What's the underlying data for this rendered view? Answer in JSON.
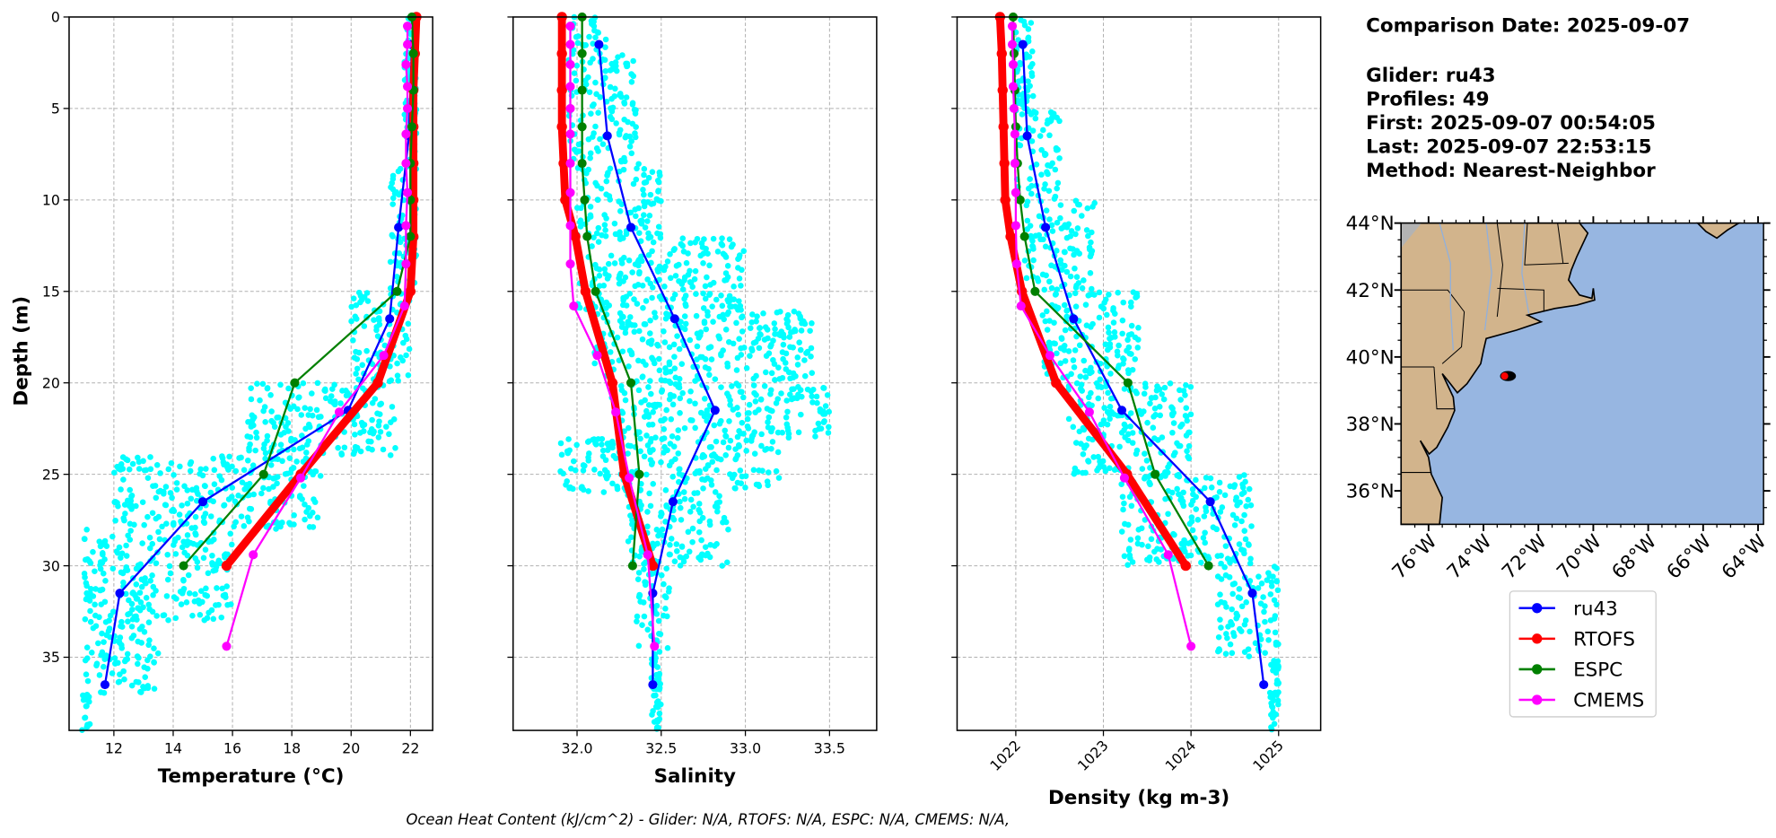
{
  "info": {
    "lines": [
      "Comparison Date: 2025-09-07",
      "",
      "Glider: ru43",
      "Profiles: 49",
      "First: 2025-09-07 00:54:05",
      "Last: 2025-09-07 22:53:15",
      "Method: Nearest-Neighbor"
    ]
  },
  "footer": "Ocean Heat Content (kJ/cm^2) - Glider: N/A,  RTOFS: N/A,  ESPC: N/A,  CMEMS: N/A,",
  "legend": [
    {
      "name": "ru43",
      "color": "#0000ff"
    },
    {
      "name": "RTOFS",
      "color": "#ff0000"
    },
    {
      "name": "ESPC",
      "color": "#008000"
    },
    {
      "name": "CMEMS",
      "color": "#ff00ff"
    }
  ],
  "scatter_color": "#00ffff",
  "chart_data": [
    {
      "type": "line",
      "xlabel": "Temperature (°C)",
      "ylabel": "Depth (m)",
      "xlim": [
        10.49,
        22.75
      ],
      "ylim": [
        39,
        0
      ],
      "xticks": [
        "12",
        "14",
        "16",
        "18",
        "20",
        "22"
      ],
      "yticks": [
        "0",
        "5",
        "10",
        "15",
        "20",
        "25",
        "30",
        "35"
      ],
      "grid": true,
      "glider_scatter_envelope": [
        [
          0,
          8,
          21.8,
          22.2
        ],
        [
          8,
          15,
          21.3,
          22.2
        ],
        [
          15,
          20,
          20.0,
          22.0
        ],
        [
          20,
          24,
          16.5,
          21.5
        ],
        [
          24,
          28,
          12.0,
          19.0
        ],
        [
          28,
          33,
          11.0,
          16.0
        ],
        [
          33,
          37,
          11.0,
          13.5
        ],
        [
          37,
          39,
          10.9,
          11.2
        ]
      ],
      "series": [
        {
          "name": "ru43",
          "depth": [
            1.5,
            6.5,
            11.5,
            16.5,
            21.5,
            26.5,
            31.5,
            36.5
          ],
          "values": [
            22.05,
            21.95,
            21.6,
            21.3,
            19.9,
            15.0,
            12.2,
            11.7
          ]
        },
        {
          "name": "RTOFS",
          "depth": [
            0,
            2,
            4,
            6,
            8,
            10,
            12,
            15,
            20,
            25,
            30
          ],
          "values": [
            22.2,
            22.15,
            22.1,
            22.1,
            22.1,
            22.1,
            22.1,
            22.0,
            20.9,
            18.3,
            15.8
          ]
        },
        {
          "name": "ESPC",
          "depth": [
            0,
            2,
            4,
            6,
            8,
            10,
            12,
            15,
            20,
            25,
            30
          ],
          "values": [
            22.05,
            22.1,
            22.1,
            22.05,
            22.0,
            22.0,
            22.0,
            21.55,
            18.1,
            17.05,
            14.35
          ]
        },
        {
          "name": "CMEMS",
          "depth": [
            0.5,
            1.5,
            2.6,
            3.8,
            5.0,
            6.4,
            8.0,
            9.6,
            11.4,
            13.5,
            15.8,
            18.5,
            21.6,
            25.2,
            29.4,
            34.4
          ],
          "values": [
            21.9,
            21.9,
            21.85,
            21.9,
            21.9,
            21.85,
            21.85,
            21.9,
            21.85,
            21.85,
            21.8,
            21.1,
            19.6,
            18.3,
            16.7,
            15.8
          ]
        }
      ]
    },
    {
      "type": "line",
      "xlabel": "Salinity",
      "ylabel": "",
      "xlim": [
        31.62,
        33.78
      ],
      "ylim": [
        39,
        0
      ],
      "xticks": [
        "32.0",
        "32.5",
        "33.0",
        "33.5"
      ],
      "yticks": [],
      "grid": true,
      "glider_scatter_envelope": [
        [
          0,
          2,
          31.95,
          32.2
        ],
        [
          2,
          8,
          31.95,
          32.35
        ],
        [
          8,
          12,
          32.0,
          32.5
        ],
        [
          12,
          16,
          32.0,
          33.0
        ],
        [
          16,
          20,
          32.1,
          33.4
        ],
        [
          20,
          23,
          32.2,
          33.5
        ],
        [
          23,
          26,
          31.9,
          33.2
        ],
        [
          26,
          30,
          32.3,
          32.9
        ],
        [
          30,
          35,
          32.35,
          32.55
        ],
        [
          35,
          39,
          32.44,
          32.5
        ]
      ],
      "series": [
        {
          "name": "ru43",
          "depth": [
            1.5,
            6.5,
            11.5,
            16.5,
            21.5,
            26.5,
            31.5,
            36.5
          ],
          "values": [
            32.13,
            32.18,
            32.32,
            32.58,
            32.82,
            32.57,
            32.45,
            32.45
          ]
        },
        {
          "name": "RTOFS",
          "depth": [
            0,
            2,
            4,
            6,
            8,
            10,
            12,
            15,
            20,
            25,
            30
          ],
          "values": [
            31.91,
            31.91,
            31.91,
            31.91,
            31.92,
            31.93,
            31.99,
            32.05,
            32.21,
            32.28,
            32.45
          ]
        },
        {
          "name": "ESPC",
          "depth": [
            0,
            2,
            4,
            6,
            8,
            10,
            12,
            15,
            20,
            25,
            30
          ],
          "values": [
            32.03,
            32.03,
            32.03,
            32.03,
            32.03,
            32.045,
            32.06,
            32.11,
            32.32,
            32.37,
            32.33
          ]
        },
        {
          "name": "CMEMS",
          "depth": [
            0.5,
            1.5,
            2.6,
            3.8,
            5.0,
            6.4,
            8.0,
            9.6,
            11.4,
            13.5,
            15.8,
            18.5,
            21.6,
            25.2,
            29.4,
            34.4
          ],
          "values": [
            31.96,
            31.96,
            31.96,
            31.96,
            31.96,
            31.96,
            31.96,
            31.96,
            31.96,
            31.96,
            31.98,
            32.12,
            32.23,
            32.31,
            32.42,
            32.46
          ]
        }
      ]
    },
    {
      "type": "line",
      "xlabel": "Density (kg m-3)",
      "ylabel": "",
      "xlim": [
        1021.33,
        1025.48
      ],
      "ylim": [
        39,
        0
      ],
      "xticks": [
        "1022",
        "1023",
        "1024",
        "1025"
      ],
      "yticks": [],
      "grid": true,
      "glider_scatter_envelope": [
        [
          0,
          5,
          1022.0,
          1022.2
        ],
        [
          5,
          10,
          1022.0,
          1022.5
        ],
        [
          10,
          15,
          1022.1,
          1022.9
        ],
        [
          15,
          20,
          1022.3,
          1023.4
        ],
        [
          20,
          25,
          1022.6,
          1024.0
        ],
        [
          25,
          30,
          1023.2,
          1024.7
        ],
        [
          30,
          35,
          1024.3,
          1025.0
        ],
        [
          35,
          39,
          1024.9,
          1025.0
        ]
      ],
      "series": [
        {
          "name": "ru43",
          "depth": [
            1.5,
            6.5,
            11.5,
            16.5,
            21.5,
            26.5,
            31.5,
            36.5
          ],
          "values": [
            1022.08,
            1022.13,
            1022.34,
            1022.66,
            1023.21,
            1024.22,
            1024.7,
            1024.83
          ]
        },
        {
          "name": "RTOFS",
          "depth": [
            0,
            2,
            4,
            6,
            8,
            10,
            12,
            15,
            20,
            25,
            30
          ],
          "values": [
            1021.82,
            1021.84,
            1021.85,
            1021.86,
            1021.87,
            1021.88,
            1021.94,
            1022.07,
            1022.46,
            1023.27,
            1023.94
          ]
        },
        {
          "name": "ESPC",
          "depth": [
            0,
            2,
            4,
            6,
            8,
            10,
            12,
            15,
            20,
            25,
            30
          ],
          "values": [
            1021.97,
            1021.98,
            1021.99,
            1022.0,
            1022.02,
            1022.05,
            1022.1,
            1022.22,
            1023.28,
            1023.59,
            1024.2
          ]
        },
        {
          "name": "CMEMS",
          "depth": [
            0.5,
            1.5,
            2.6,
            3.8,
            5.0,
            6.4,
            8.0,
            9.6,
            11.4,
            13.5,
            15.8,
            18.5,
            21.6,
            25.2,
            29.4,
            34.4
          ],
          "values": [
            1021.96,
            1021.96,
            1021.97,
            1021.97,
            1021.98,
            1021.99,
            1021.99,
            1022.0,
            1022.0,
            1022.01,
            1022.06,
            1022.39,
            1022.84,
            1023.24,
            1023.74,
            1024.0
          ]
        }
      ]
    }
  ],
  "map": {
    "lon_range": [
      -77,
      -63.8
    ],
    "lat_range": [
      35,
      44
    ],
    "lat_ticks": [
      "44°N",
      "42°N",
      "40°N",
      "38°N",
      "36°N"
    ],
    "lon_ticks": [
      "76°W",
      "74°W",
      "72°W",
      "70°W",
      "68°W",
      "66°W",
      "64°W"
    ],
    "glider_position": {
      "lon": -73.23,
      "lat": 39.43
    },
    "land_color": "#d2b48c",
    "ocean_color": "#97b6e1"
  }
}
